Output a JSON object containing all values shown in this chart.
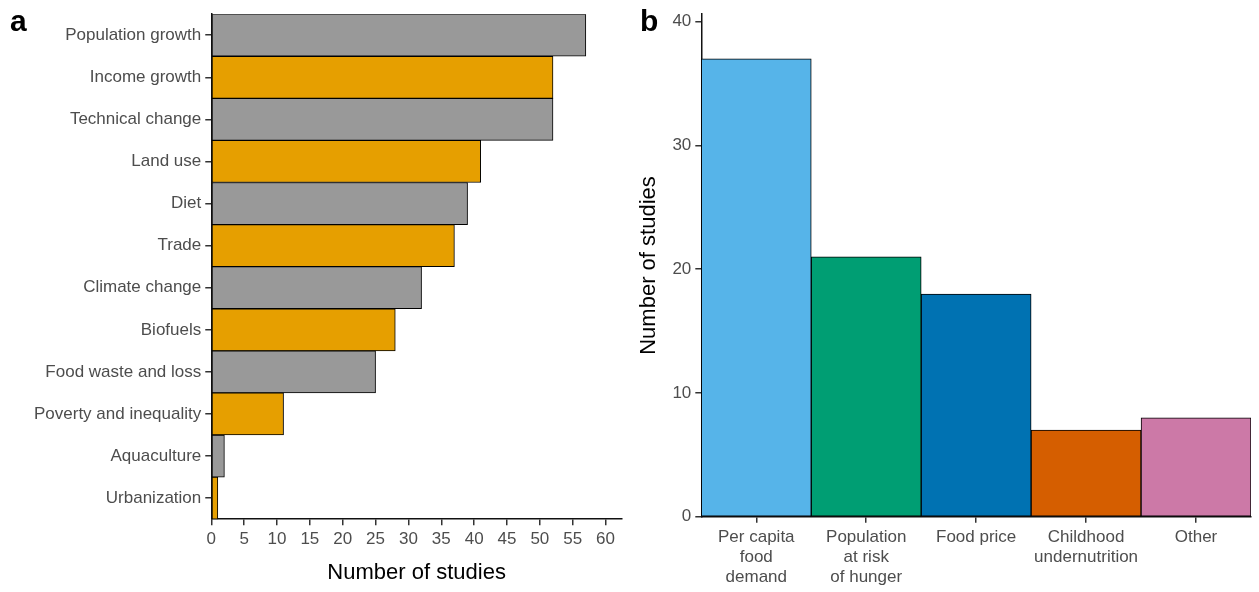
{
  "chart_data": [
    {
      "type": "bar",
      "title": "a",
      "orientation": "horizontal",
      "xlabel": "Number of studies",
      "categories": [
        "Population growth",
        "Income growth",
        "Technical change",
        "Land use",
        "Diet",
        "Trade",
        "Climate change",
        "Biofuels",
        "Food waste and loss",
        "Poverty and inequality",
        "Aquaculture",
        "Urbanization"
      ],
      "values": [
        57,
        52,
        52,
        41,
        39,
        37,
        32,
        28,
        25,
        11,
        2,
        1
      ],
      "colors": [
        "#999999",
        "#e69f00",
        "#999999",
        "#e69f00",
        "#999999",
        "#e69f00",
        "#999999",
        "#e69f00",
        "#999999",
        "#e69f00",
        "#999999",
        "#e69f00"
      ],
      "xlim": [
        0,
        62.5
      ],
      "xticks": [
        0,
        5,
        10,
        15,
        20,
        25,
        30,
        35,
        40,
        45,
        50,
        55,
        60
      ],
      "grid": false,
      "legend": false
    },
    {
      "type": "bar",
      "title": "b",
      "ylabel": "Number of studies",
      "categories": [
        "Per capita\nfood\ndemand",
        "Population\nat risk\nof hunger",
        "Food price",
        "Childhood\nundernutrition",
        "Other"
      ],
      "values": [
        37,
        21,
        18,
        7,
        8
      ],
      "colors": [
        "#56b4e9",
        "#009e73",
        "#0072b2",
        "#d55e00",
        "#cc79a7"
      ],
      "ylim": [
        0,
        40.6
      ],
      "yticks": [
        0,
        10,
        20,
        30,
        40
      ],
      "grid": false,
      "legend": false
    }
  ]
}
